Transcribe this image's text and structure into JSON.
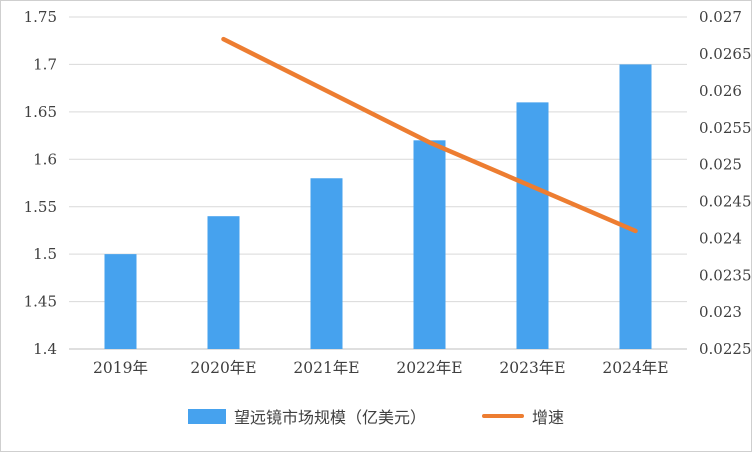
{
  "chart_data": {
    "type": "combo-bar-line",
    "categories": [
      "2019年",
      "2020年E",
      "2021年E",
      "2022年E",
      "2023年E",
      "2024年E"
    ],
    "series": [
      {
        "name": "望远镜市场规模（亿美元）",
        "type": "bar",
        "axis": "left",
        "color": "#46A2EE",
        "values": [
          1.5,
          1.54,
          1.58,
          1.62,
          1.66,
          1.7
        ]
      },
      {
        "name": "增速",
        "type": "line",
        "axis": "right",
        "color": "#ED7D31",
        "values": [
          null,
          0.0267,
          0.026,
          0.0253,
          0.0247,
          0.0241
        ]
      }
    ],
    "left_axis": {
      "min": 1.4,
      "max": 1.75,
      "ticks": [
        "1.4",
        "1.45",
        "1.5",
        "1.55",
        "1.6",
        "1.65",
        "1.7",
        "1.75"
      ]
    },
    "right_axis": {
      "min": 0.0225,
      "max": 0.027,
      "ticks": [
        "0.0225",
        "0.023",
        "0.0235",
        "0.024",
        "0.0245",
        "0.025",
        "0.0255",
        "0.026",
        "0.0265",
        "0.027"
      ]
    },
    "grid": true,
    "legend_position": "bottom",
    "title": "",
    "xlabel": "",
    "ylabel": ""
  },
  "style": {
    "grid_color": "#d9d9d9",
    "axis_line_color": "#bfbfbf",
    "text_color": "#404040",
    "tick_font_size": 15,
    "category_font_size": 15.5
  }
}
